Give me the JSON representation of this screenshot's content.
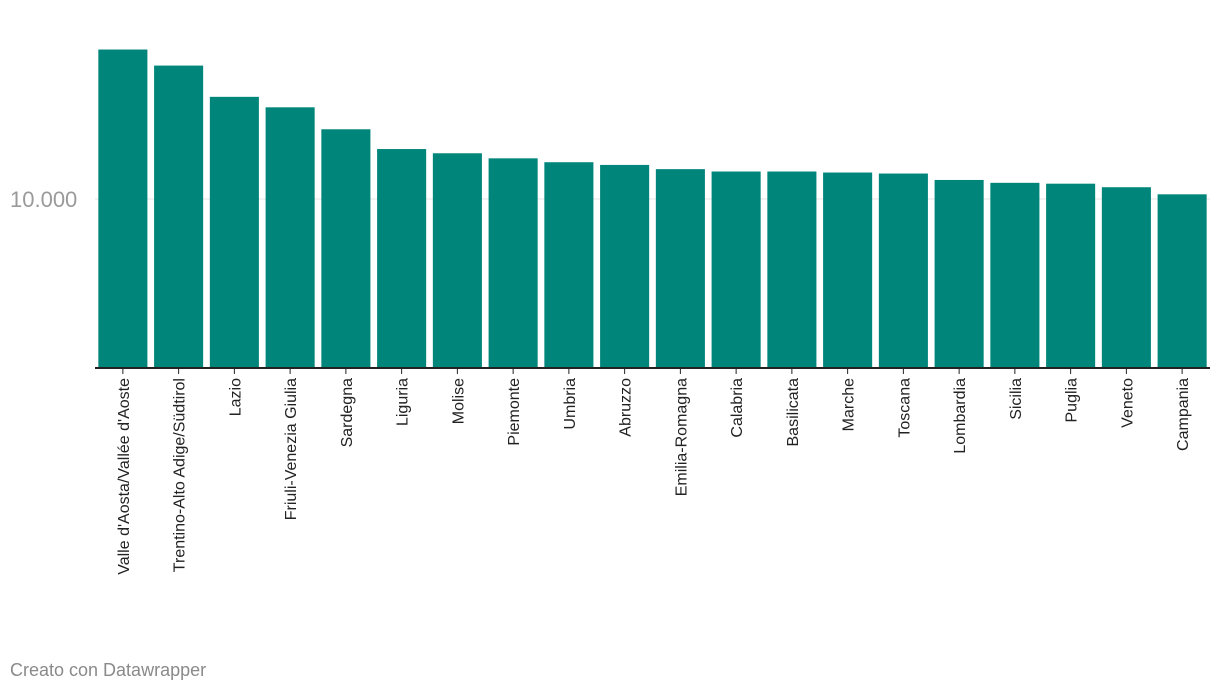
{
  "chart_data": {
    "type": "bar",
    "title": "",
    "xlabel": "",
    "ylabel": "",
    "categories": [
      "Valle d'Aosta/Vallée d'Aoste",
      "Trentino-Alto Adige/Südtirol",
      "Lazio",
      "Friuli-Venezia Giulia",
      "Sardegna",
      "Liguria",
      "Molise",
      "Piemonte",
      "Umbria",
      "Abruzzo",
      "Emilia-Romagna",
      "Calabria",
      "Basilicata",
      "Marche",
      "Toscana",
      "Lombardia",
      "Sicilia",
      "Puglia",
      "Veneto",
      "Campania"
    ],
    "values": [
      18850,
      17900,
      16050,
      15430,
      14130,
      12960,
      12710,
      12410,
      12180,
      12020,
      11770,
      11630,
      11630,
      11570,
      11510,
      11130,
      10960,
      10910,
      10700,
      10280
    ],
    "ylim": [
      0,
      19000
    ],
    "y_ticks": [
      {
        "value": 10000,
        "label": "10.000"
      }
    ],
    "grid": true,
    "bar_color": "#00857a"
  },
  "credit": "Creato con Datawrapper"
}
